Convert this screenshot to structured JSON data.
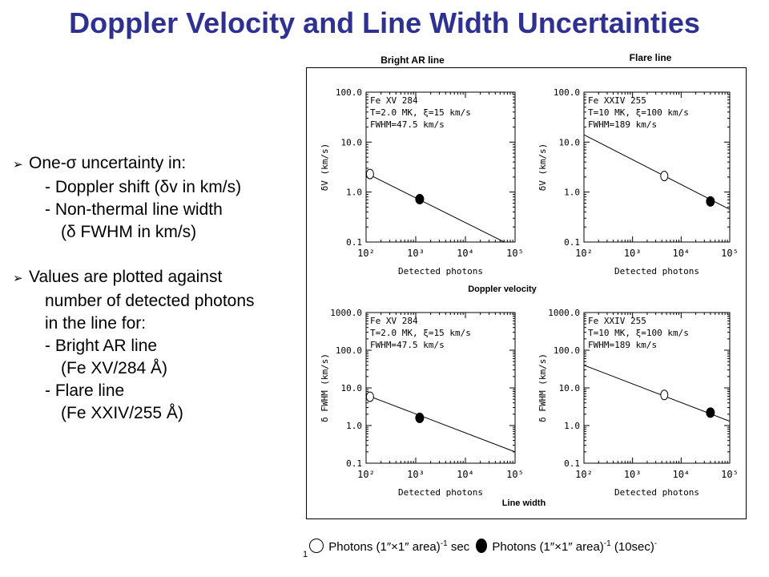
{
  "title": "Doppler Velocity and Line Width Uncertainties",
  "bullets": {
    "b1_main": "One-σ uncertainty in:",
    "b1_sub1": "- Doppler shift (δv in km/s)",
    "b1_sub2": "- Non-thermal line width",
    "b1_sub3": "(δ FWHM in km/s)",
    "b2_main": "Values are plotted against",
    "b2_l2": "number of detected photons",
    "b2_l3": "in the line for:",
    "b2_sub1": "- Bright AR line",
    "b2_sub2": "(Fe XV/284 Å)",
    "b2_sub3": "- Flare line",
    "b2_sub4": "(Fe XXIV/255 Å)"
  },
  "figure": {
    "col_left_label": "Bright AR line",
    "col_right_label": "Flare line",
    "mid_label": "Doppler velocity",
    "bottom_label": "Line width"
  },
  "legend": {
    "one": "1",
    "open_text": "Photons (1″×1″ area)",
    "open_exp": "-1",
    "open_tail": " sec",
    "filled_text": "Photons (1″×1″ area)",
    "filled_exp": "-1",
    "filled_tail": " (10sec)",
    "filled_tail_exp": "-"
  },
  "chart_data": [
    {
      "type": "line",
      "annotation": [
        "Fe XV 284",
        "T=2.0 MK, ξ=15 km/s",
        "FWHM=47.5 km/s"
      ],
      "xlabel": "Detected photons",
      "ylabel": "δV (km/s)",
      "xscale": "log",
      "yscale": "log",
      "xlim": [
        100,
        100000
      ],
      "ylim": [
        0.1,
        100
      ],
      "xticks": [
        "10²",
        "10³",
        "10⁴",
        "10⁵"
      ],
      "yticks": [
        "0.1",
        "1.0",
        "10.0",
        "100.0"
      ],
      "line": [
        [
          100,
          2.4
        ],
        [
          75000,
          0.09
        ]
      ],
      "points": [
        {
          "x": 120,
          "y": 2.3,
          "style": "open"
        },
        {
          "x": 1200,
          "y": 0.72,
          "style": "filled"
        }
      ]
    },
    {
      "type": "line",
      "annotation": [
        "Fe XXIV 255",
        "T=10 MK, ξ=100 km/s",
        "FWHM=189 km/s"
      ],
      "xlabel": "Detected photons",
      "ylabel": "δV (km/s)",
      "xscale": "log",
      "yscale": "log",
      "xlim": [
        100,
        100000
      ],
      "ylim": [
        0.1,
        100
      ],
      "xticks": [
        "10²",
        "10³",
        "10⁴",
        "10⁵"
      ],
      "yticks": [
        "0.1",
        "1.0",
        "10.0",
        "100.0"
      ],
      "line": [
        [
          100,
          14
        ],
        [
          100000,
          0.45
        ]
      ],
      "points": [
        {
          "x": 4500,
          "y": 2.1,
          "style": "open"
        },
        {
          "x": 40000,
          "y": 0.65,
          "style": "filled"
        }
      ]
    },
    {
      "type": "line",
      "annotation": [
        "Fe XV 284",
        "T=2.0 MK, ξ=15 km/s",
        "FWHM=47.5 km/s"
      ],
      "xlabel": "Detected photons",
      "ylabel": "δ FWHM (km/s)",
      "xscale": "log",
      "yscale": "log",
      "xlim": [
        100,
        100000
      ],
      "ylim": [
        0.1,
        1000
      ],
      "xticks": [
        "10²",
        "10³",
        "10⁴",
        "10⁵"
      ],
      "yticks": [
        "0.1",
        "1.0",
        "10.0",
        "100.0",
        "1000.0"
      ],
      "line": [
        [
          100,
          6.5
        ],
        [
          100000,
          0.2
        ]
      ],
      "points": [
        {
          "x": 120,
          "y": 5.8,
          "style": "open"
        },
        {
          "x": 1200,
          "y": 1.6,
          "style": "filled"
        }
      ]
    },
    {
      "type": "line",
      "annotation": [
        "Fe XXIV 255",
        "T=10 MK, ξ=100 km/s",
        "FWHM=189 km/s"
      ],
      "xlabel": "Detected photons",
      "ylabel": "δ FWHM (km/s)",
      "xscale": "log",
      "yscale": "log",
      "xlim": [
        100,
        100000
      ],
      "ylim": [
        0.1,
        1000
      ],
      "xticks": [
        "10²",
        "10³",
        "10⁴",
        "10⁵"
      ],
      "yticks": [
        "0.1",
        "1.0",
        "10.0",
        "100.0",
        "1000.0"
      ],
      "line": [
        [
          100,
          40
        ],
        [
          100000,
          1.3
        ]
      ],
      "points": [
        {
          "x": 4500,
          "y": 6.5,
          "style": "open"
        },
        {
          "x": 40000,
          "y": 2.2,
          "style": "filled"
        }
      ]
    }
  ]
}
